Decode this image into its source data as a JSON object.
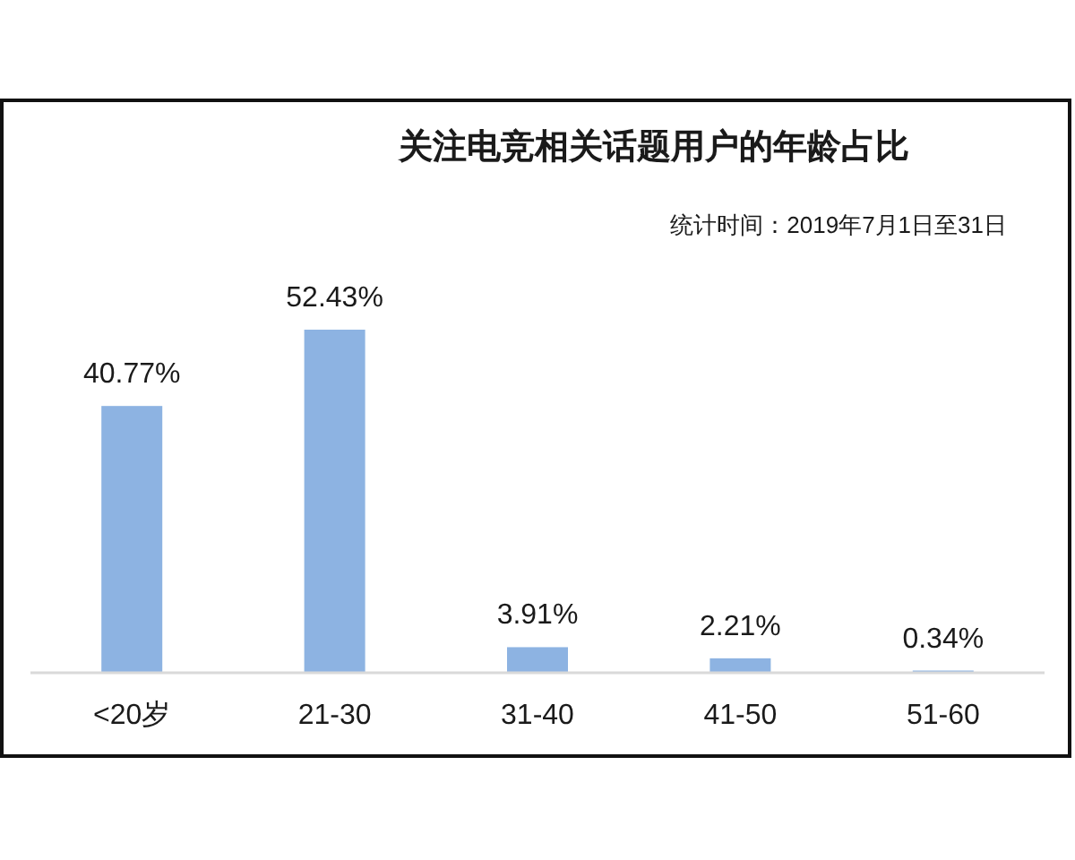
{
  "chart_data": {
    "type": "bar",
    "title": "关注电竞相关话题用户的年龄占比",
    "subtitle": "统计时间：2019年7月1日至31日",
    "categories": [
      "<20岁",
      "21-30",
      "31-40",
      "41-50",
      "51-60"
    ],
    "values": [
      40.77,
      52.43,
      3.91,
      2.21,
      0.34
    ],
    "value_labels": [
      "40.77%",
      "52.43%",
      "3.91%",
      "2.21%",
      "0.34%"
    ],
    "color": "#8db3e2"
  }
}
